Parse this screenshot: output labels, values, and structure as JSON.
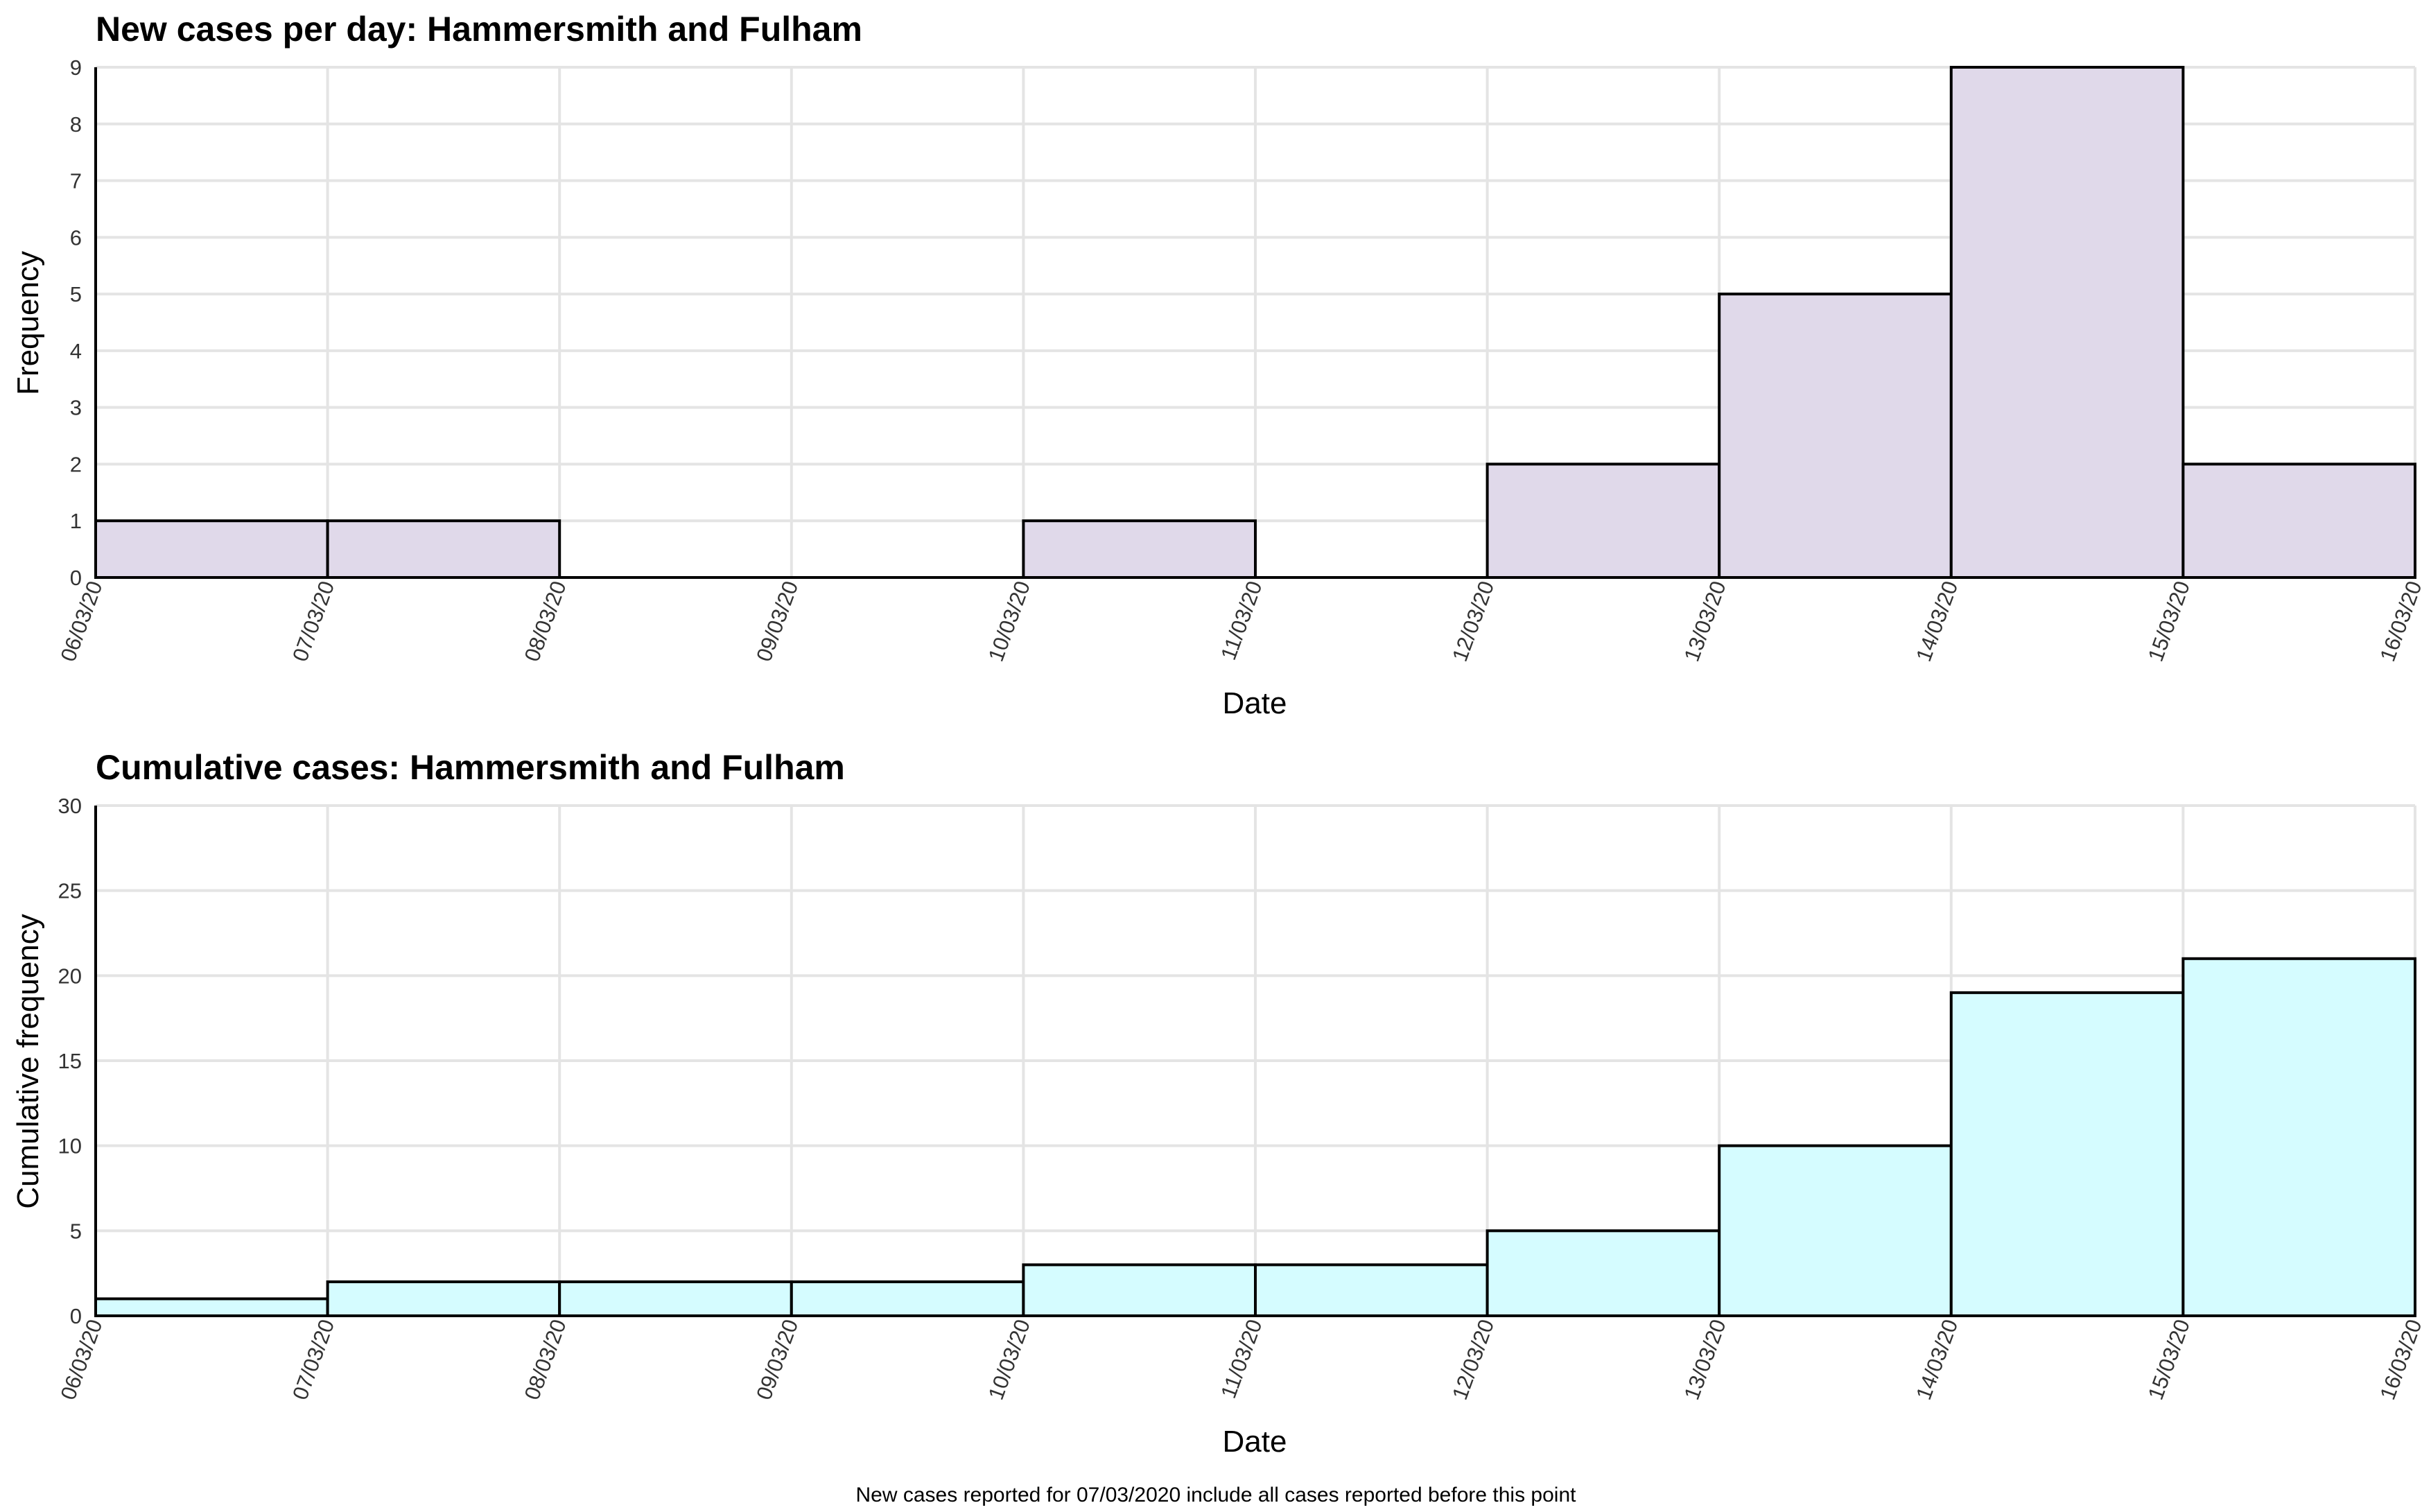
{
  "chart_data": [
    {
      "type": "bar",
      "title": "New cases per day: Hammersmith and Fulham",
      "xlabel": "Date",
      "ylabel": "Frequency",
      "x_ticks": [
        "06/03/20",
        "07/03/20",
        "08/03/20",
        "09/03/20",
        "10/03/20",
        "11/03/20",
        "12/03/20",
        "13/03/20",
        "14/03/20",
        "15/03/20",
        "16/03/20"
      ],
      "categories": [
        "06/03/20",
        "07/03/20",
        "08/03/20",
        "09/03/20",
        "10/03/20",
        "11/03/20",
        "12/03/20",
        "13/03/20",
        "14/03/20",
        "15/03/20"
      ],
      "values": [
        1,
        1,
        0,
        0,
        1,
        0,
        2,
        5,
        9,
        2
      ],
      "ylim": [
        0,
        9
      ],
      "y_ticks": [
        0,
        1,
        2,
        3,
        4,
        5,
        6,
        7,
        8,
        9
      ],
      "grid": true,
      "fill_color": "#e0d9ea"
    },
    {
      "type": "bar",
      "title": "Cumulative cases: Hammersmith and Fulham",
      "xlabel": "Date",
      "ylabel": "Cumulative frequency",
      "x_ticks": [
        "06/03/20",
        "07/03/20",
        "08/03/20",
        "09/03/20",
        "10/03/20",
        "11/03/20",
        "12/03/20",
        "13/03/20",
        "14/03/20",
        "15/03/20",
        "16/03/20"
      ],
      "categories": [
        "06/03/20",
        "07/03/20",
        "08/03/20",
        "09/03/20",
        "10/03/20",
        "11/03/20",
        "12/03/20",
        "13/03/20",
        "14/03/20",
        "15/03/20"
      ],
      "values": [
        1,
        2,
        2,
        2,
        3,
        3,
        5,
        10,
        19,
        21
      ],
      "ylim": [
        0,
        30
      ],
      "y_ticks": [
        0,
        5,
        10,
        15,
        20,
        25,
        30
      ],
      "grid": true,
      "fill_color": "#d5fcff"
    }
  ],
  "caption": "New cases reported for 07/03/2020 include all cases reported before this point"
}
